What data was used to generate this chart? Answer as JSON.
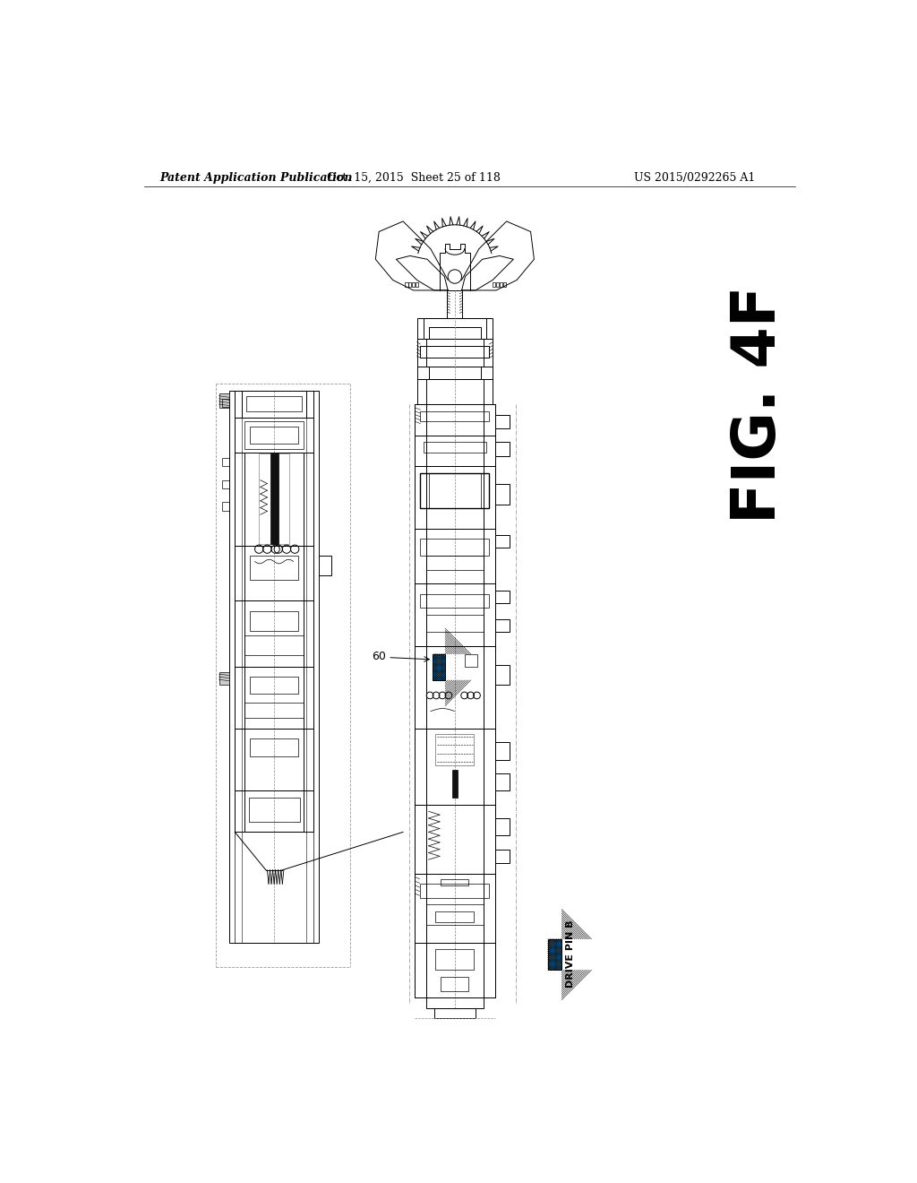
{
  "background_color": "#ffffff",
  "header_left": "Patent Application Publication",
  "header_center": "Oct. 15, 2015  Sheet 25 of 118",
  "header_right": "US 2015/0292265 A1",
  "fig_label": "FIG. 4F",
  "label_60": "60",
  "legend_text": "DRIVE PIN B",
  "header_fontsize": 9,
  "fig_label_fontsize": 48
}
